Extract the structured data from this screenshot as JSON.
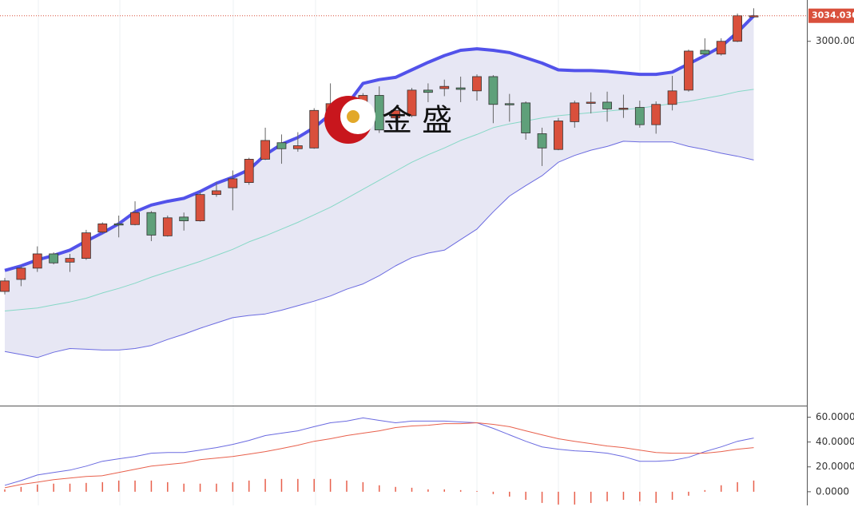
{
  "chart_data": [
    {
      "type": "candlestick",
      "open": [
        2667,
        2683,
        2698,
        2717,
        2706,
        2711,
        2746,
        2757,
        2756,
        2772,
        2741,
        2766,
        2761,
        2796,
        2805,
        2812,
        2843,
        2865,
        2857,
        2858,
        2906,
        2895,
        2904,
        2928,
        2898,
        2901,
        2935,
        2937,
        2938,
        2934,
        2953,
        2917,
        2918,
        2877,
        2856,
        2893,
        2918,
        2919,
        2911,
        2912,
        2889,
        2916,
        2935,
        2988,
        2983,
        3000,
        3034
      ],
      "high": [
        2685,
        2701,
        2727,
        2719,
        2717,
        2749,
        2759,
        2768,
        2787,
        2774,
        2768,
        2772,
        2800,
        2812,
        2828,
        2845,
        2885,
        2876,
        2879,
        2911,
        2944,
        2922,
        2931,
        2940,
        2911,
        2938,
        2944,
        2949,
        2953,
        2956,
        2955,
        2930,
        2920,
        2885,
        2898,
        2921,
        2932,
        2933,
        2929,
        2921,
        2920,
        2954,
        2989,
        3004,
        3004,
        3037,
        3044
      ],
      "low": [
        2663,
        2674,
        2693,
        2703,
        2693,
        2709,
        2744,
        2739,
        2755,
        2734,
        2740,
        2748,
        2760,
        2793,
        2775,
        2809,
        2842,
        2837,
        2853,
        2857,
        2904,
        2890,
        2885,
        2878,
        2895,
        2899,
        2919,
        2927,
        2919,
        2921,
        2891,
        2893,
        2869,
        2834,
        2855,
        2885,
        2904,
        2893,
        2898,
        2885,
        2877,
        2908,
        2933,
        2981,
        2981,
        2999,
        3032
      ],
      "close": [
        2681,
        2698,
        2717,
        2705,
        2711,
        2745,
        2757,
        2756,
        2772,
        2742,
        2765,
        2761,
        2796,
        2801,
        2817,
        2843,
        2868,
        2857,
        2861,
        2908,
        2917,
        2906,
        2928,
        2882,
        2908,
        2935,
        2932,
        2940,
        2936,
        2953,
        2916,
        2916,
        2878,
        2858,
        2894,
        2918,
        2919,
        2910,
        2911,
        2889,
        2916,
        2934,
        2987,
        2983,
        3000,
        3034,
        3034.036
      ],
      "up_color": "#d9503c",
      "down_color": "#5fa07a",
      "series": [
        {
          "color": "#5252ea",
          "values": [
            2695,
            2701,
            2709,
            2715,
            2722,
            2734,
            2745,
            2757,
            2773,
            2782,
            2787,
            2791,
            2800,
            2811,
            2819,
            2829,
            2849,
            2863,
            2872,
            2885,
            2903,
            2915,
            2944,
            2949,
            2952,
            2962,
            2972,
            2981,
            2988,
            2990,
            2988,
            2985,
            2978,
            2971,
            2962,
            2961,
            2961,
            2960,
            2958,
            2956,
            2956,
            2959,
            2970,
            2981,
            2993,
            3012,
            3034
          ]
        },
        {
          "color": "#86d8c6",
          "values": [
            2641,
            2643,
            2645,
            2649,
            2653,
            2658,
            2665,
            2671,
            2678,
            2686,
            2693,
            2700,
            2707,
            2715,
            2723,
            2733,
            2741,
            2750,
            2759,
            2769,
            2779,
            2791,
            2803,
            2815,
            2827,
            2839,
            2849,
            2858,
            2868,
            2876,
            2885,
            2890,
            2894,
            2898,
            2901,
            2903,
            2905,
            2907,
            2909,
            2911,
            2914,
            2917,
            2920,
            2924,
            2928,
            2933,
            2936
          ]
        },
        {
          "color": "#6b6be0",
          "values": [
            2587,
            2583,
            2579,
            2586,
            2591,
            2590,
            2589,
            2589,
            2591,
            2595,
            2603,
            2610,
            2618,
            2625,
            2632,
            2635,
            2637,
            2642,
            2648,
            2654,
            2661,
            2670,
            2677,
            2688,
            2701,
            2712,
            2718,
            2722,
            2736,
            2750,
            2773,
            2794,
            2808,
            2821,
            2839,
            2848,
            2855,
            2860,
            2867,
            2866,
            2866,
            2866,
            2860,
            2856,
            2851,
            2847,
            2842
          ]
        }
      ],
      "band_color": "#e7e7f4",
      "ylim": [
        2515,
        3055
      ],
      "yticks": [
        {
          "value": 3000,
          "label": "3000.00"
        }
      ],
      "last_price": 3034.036,
      "watermark": "金 盛"
    },
    {
      "type": "macd",
      "series": [
        {
          "color": "#6a6ae0",
          "values": [
            5.2,
            9.0,
            13.5,
            15.5,
            17.4,
            20.6,
            24.5,
            26.5,
            28.4,
            31.0,
            31.6,
            31.6,
            33.5,
            35.5,
            38.1,
            41.3,
            45.2,
            47.1,
            49.0,
            52.3,
            55.5,
            56.8,
            59.4,
            57.4,
            55.5,
            56.8,
            56.8,
            56.8,
            56.1,
            55.5,
            51.0,
            45.8,
            40.6,
            36.1,
            34.2,
            32.9,
            32.3,
            31.0,
            28.4,
            24.5,
            24.5,
            25.2,
            27.7,
            32.3,
            36.1,
            40.6,
            43.2
          ]
        },
        {
          "color": "#e8604c",
          "values": [
            3.2,
            5.8,
            7.7,
            9.7,
            11.0,
            12.3,
            12.9,
            15.5,
            18.1,
            20.6,
            21.9,
            23.2,
            25.8,
            27.1,
            28.4,
            30.3,
            32.3,
            34.8,
            37.4,
            40.6,
            42.6,
            45.2,
            47.1,
            49.0,
            51.6,
            52.9,
            53.5,
            54.8,
            54.8,
            55.5,
            54.2,
            52.3,
            49.0,
            45.8,
            42.6,
            40.6,
            38.7,
            36.8,
            35.5,
            33.5,
            31.6,
            31.0,
            31.0,
            31.0,
            32.3,
            34.2,
            35.5
          ]
        }
      ],
      "histogram": [
        1.9,
        3.9,
        5.8,
        6.5,
        6.5,
        7.1,
        7.7,
        9.0,
        9.0,
        9.0,
        7.7,
        6.5,
        6.5,
        6.5,
        7.7,
        9.0,
        10.3,
        10.3,
        10.3,
        10.3,
        10.3,
        9.0,
        7.7,
        5.2,
        3.9,
        3.2,
        1.9,
        1.9,
        1.3,
        0.6,
        -1.9,
        -3.9,
        -6.5,
        -9.0,
        -10.3,
        -10.3,
        -9.0,
        -7.7,
        -6.5,
        -7.7,
        -9.0,
        -6.5,
        -3.2,
        1.3,
        5.2,
        7.7,
        9.0
      ],
      "histogram_color": "#e8604c",
      "ylim": [
        -11,
        68
      ],
      "yticks": [
        {
          "value": 60,
          "label": "60.0000"
        },
        {
          "value": 40,
          "label": "40.0000"
        },
        {
          "value": 20,
          "label": "20.0000"
        },
        {
          "value": 0,
          "label": "0.0000"
        }
      ]
    }
  ]
}
